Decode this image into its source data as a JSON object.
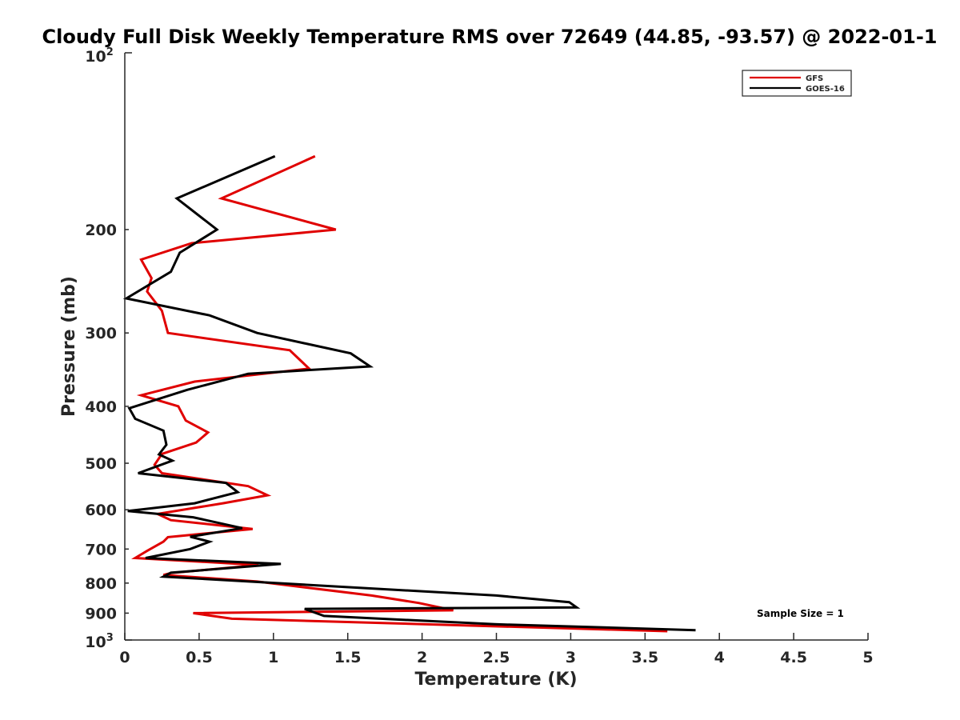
{
  "chart_data": {
    "type": "line",
    "title": "Cloudy Full Disk Weekly Temperature RMS over 72649 (44.85, -93.57) @ 2022-01-1",
    "xlabel": "Temperature (K)",
    "ylabel": "Pressure (mb)",
    "xlim": [
      0,
      5
    ],
    "ylim": [
      100,
      1000
    ],
    "y_scale": "log",
    "y_reversed": true,
    "grid": false,
    "legend_placement": "top-right",
    "x_ticks": [
      "0",
      "0.5",
      "1",
      "1.5",
      "2",
      "2.5",
      "3",
      "3.5",
      "4",
      "4.5",
      "5"
    ],
    "y_ticks": [
      "200",
      "300",
      "400",
      "500",
      "600",
      "700",
      "800",
      "900"
    ],
    "y_tick_values": [
      200,
      300,
      400,
      500,
      600,
      700,
      800,
      900
    ],
    "y_end_labels": {
      "top_base": "10",
      "top_exp": "2",
      "bottom_base": "10",
      "bottom_exp": "3"
    },
    "annotation": "Sample Size = 1",
    "series": [
      {
        "name": "GFS",
        "color": "#e00000",
        "points": [
          [
            1.28,
            150
          ],
          [
            0.65,
            177
          ],
          [
            1.42,
            200
          ],
          [
            0.45,
            211
          ],
          [
            0.11,
            225
          ],
          [
            0.18,
            242
          ],
          [
            0.15,
            255
          ],
          [
            0.25,
            275
          ],
          [
            0.29,
            300
          ],
          [
            1.11,
            321
          ],
          [
            1.24,
            345
          ],
          [
            0.47,
            363
          ],
          [
            0.11,
            383
          ],
          [
            0.36,
            400
          ],
          [
            0.41,
            423
          ],
          [
            0.56,
            443
          ],
          [
            0.48,
            461
          ],
          [
            0.25,
            482
          ],
          [
            0.2,
            503
          ],
          [
            0.25,
            520
          ],
          [
            0.83,
            547
          ],
          [
            0.96,
            567
          ],
          [
            0.66,
            585
          ],
          [
            0.22,
            610
          ],
          [
            0.31,
            625
          ],
          [
            0.86,
            647
          ],
          [
            0.29,
            668
          ],
          [
            0.26,
            680
          ],
          [
            0.15,
            705
          ],
          [
            0.07,
            725
          ],
          [
            0.9,
            745
          ],
          [
            0.31,
            769
          ],
          [
            0.26,
            775
          ],
          [
            0.89,
            795
          ],
          [
            1.66,
            840
          ],
          [
            1.98,
            865
          ],
          [
            2.21,
            890
          ],
          [
            0.46,
            900
          ],
          [
            0.72,
            920
          ],
          [
            3.65,
            966
          ]
        ]
      },
      {
        "name": "GOES-16",
        "color": "#000000",
        "points": [
          [
            1.01,
            150
          ],
          [
            0.35,
            177
          ],
          [
            0.62,
            200
          ],
          [
            0.37,
            219
          ],
          [
            0.31,
            236
          ],
          [
            0.01,
            262
          ],
          [
            0.57,
            280
          ],
          [
            0.89,
            300
          ],
          [
            1.52,
            325
          ],
          [
            1.65,
            342
          ],
          [
            0.83,
            352
          ],
          [
            0.42,
            375
          ],
          [
            0.03,
            403
          ],
          [
            0.07,
            420
          ],
          [
            0.26,
            440
          ],
          [
            0.28,
            465
          ],
          [
            0.23,
            483
          ],
          [
            0.32,
            495
          ],
          [
            0.09,
            520
          ],
          [
            0.68,
            540
          ],
          [
            0.76,
            560
          ],
          [
            0.47,
            585
          ],
          [
            0.02,
            603
          ],
          [
            0.46,
            618
          ],
          [
            0.79,
            645
          ],
          [
            0.44,
            667
          ],
          [
            0.57,
            680
          ],
          [
            0.44,
            700
          ],
          [
            0.14,
            725
          ],
          [
            1.05,
            742
          ],
          [
            0.31,
            768
          ],
          [
            0.26,
            780
          ],
          [
            2.5,
            840
          ],
          [
            2.99,
            862
          ],
          [
            3.04,
            880
          ],
          [
            1.21,
            885
          ],
          [
            1.34,
            910
          ],
          [
            2.49,
            940
          ],
          [
            3.84,
            962
          ]
        ]
      }
    ]
  }
}
